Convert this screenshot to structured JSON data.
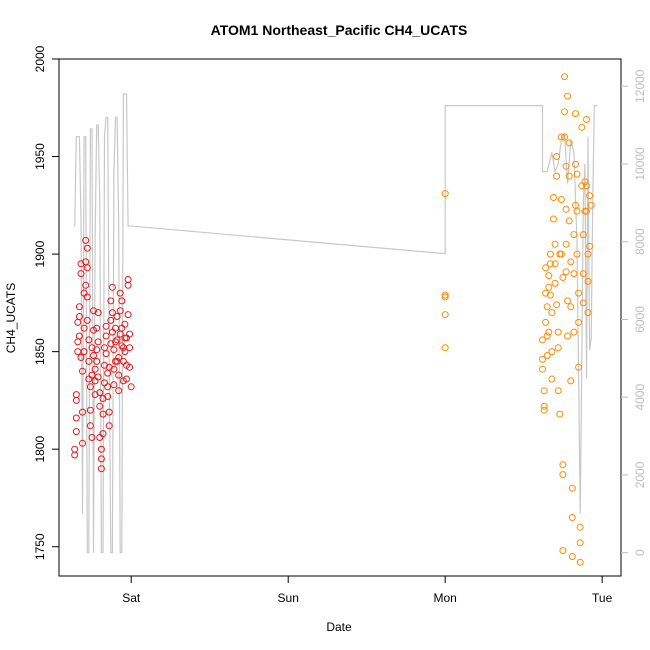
{
  "chart_data": {
    "type": "scatter",
    "title": "ATOM1 Northeast_Pacific CH4_UCATS",
    "xlabel": "Date",
    "ylabel": "CH4_UCATS",
    "x_ticks": [
      "Sat",
      "Sun",
      "Mon",
      "Tue"
    ],
    "x_range_days": [
      -0.46,
      3.12
    ],
    "ylim": [
      1735,
      2000
    ],
    "y_ticks": [
      1750,
      1800,
      1850,
      1900,
      1950,
      2000
    ],
    "y2lim": [
      -600,
      12700
    ],
    "y2_ticks": [
      0,
      2000,
      4000,
      6000,
      8000,
      10000,
      12000
    ],
    "grid": false,
    "legend": "none",
    "series": [
      {
        "color": "#e31a1c",
        "points": [
          [
            -0.36,
            1797
          ],
          [
            -0.36,
            1800
          ],
          [
            -0.35,
            1809
          ],
          [
            -0.35,
            1816
          ],
          [
            -0.35,
            1825
          ],
          [
            -0.35,
            1828
          ],
          [
            -0.34,
            1850
          ],
          [
            -0.34,
            1855
          ],
          [
            -0.34,
            1865
          ],
          [
            -0.33,
            1858
          ],
          [
            -0.33,
            1868
          ],
          [
            -0.33,
            1873
          ],
          [
            -0.32,
            1895
          ],
          [
            -0.32,
            1890
          ],
          [
            -0.32,
            1847
          ],
          [
            -0.31,
            1840
          ],
          [
            -0.31,
            1819
          ],
          [
            -0.31,
            1803
          ],
          [
            -0.3,
            1850
          ],
          [
            -0.3,
            1862
          ],
          [
            -0.3,
            1880
          ],
          [
            -0.29,
            1884
          ],
          [
            -0.29,
            1896
          ],
          [
            -0.29,
            1907
          ],
          [
            -0.28,
            1903
          ],
          [
            -0.28,
            1893
          ],
          [
            -0.28,
            1878
          ],
          [
            -0.28,
            1866
          ],
          [
            -0.27,
            1856
          ],
          [
            -0.27,
            1845
          ],
          [
            -0.27,
            1836
          ],
          [
            -0.26,
            1832
          ],
          [
            -0.26,
            1820
          ],
          [
            -0.26,
            1812
          ],
          [
            -0.25,
            1806
          ],
          [
            -0.25,
            1838
          ],
          [
            -0.25,
            1852
          ],
          [
            -0.24,
            1861
          ],
          [
            -0.24,
            1871
          ],
          [
            -0.24,
            1848
          ],
          [
            -0.23,
            1841
          ],
          [
            -0.23,
            1828
          ],
          [
            -0.23,
            1835
          ],
          [
            -0.22,
            1845
          ],
          [
            -0.22,
            1851
          ],
          [
            -0.22,
            1862
          ],
          [
            -0.21,
            1870
          ],
          [
            -0.21,
            1855
          ],
          [
            -0.21,
            1837
          ],
          [
            -0.2,
            1829
          ],
          [
            -0.2,
            1822
          ],
          [
            -0.2,
            1806
          ],
          [
            -0.19,
            1800
          ],
          [
            -0.19,
            1790
          ],
          [
            -0.19,
            1795
          ],
          [
            -0.18,
            1808
          ],
          [
            -0.18,
            1818
          ],
          [
            -0.18,
            1826
          ],
          [
            -0.17,
            1834
          ],
          [
            -0.17,
            1843
          ],
          [
            -0.17,
            1852
          ],
          [
            -0.16,
            1858
          ],
          [
            -0.16,
            1863
          ],
          [
            -0.16,
            1849
          ],
          [
            -0.15,
            1839
          ],
          [
            -0.15,
            1832
          ],
          [
            -0.15,
            1827
          ],
          [
            -0.14,
            1819
          ],
          [
            -0.14,
            1812
          ],
          [
            -0.14,
            1842
          ],
          [
            -0.13,
            1854
          ],
          [
            -0.13,
            1866
          ],
          [
            -0.13,
            1876
          ],
          [
            -0.12,
            1883
          ],
          [
            -0.12,
            1870
          ],
          [
            -0.12,
            1860
          ],
          [
            -0.11,
            1851
          ],
          [
            -0.11,
            1841
          ],
          [
            -0.11,
            1833
          ],
          [
            -0.1,
            1845
          ],
          [
            -0.1,
            1855
          ],
          [
            -0.1,
            1862
          ],
          [
            -0.09,
            1868
          ],
          [
            -0.09,
            1856
          ],
          [
            -0.09,
            1845
          ],
          [
            -0.08,
            1838
          ],
          [
            -0.08,
            1830
          ],
          [
            -0.08,
            1847
          ],
          [
            -0.07,
            1859
          ],
          [
            -0.07,
            1871
          ],
          [
            -0.07,
            1880
          ],
          [
            -0.06,
            1876
          ],
          [
            -0.06,
            1862
          ],
          [
            -0.06,
            1853
          ],
          [
            -0.05,
            1845
          ],
          [
            -0.05,
            1835
          ],
          [
            -0.05,
            1852
          ],
          [
            -0.04,
            1857
          ],
          [
            -0.04,
            1864
          ],
          [
            -0.04,
            1850
          ],
          [
            -0.03,
            1843
          ],
          [
            -0.03,
            1836
          ],
          [
            -0.03,
            1857
          ],
          [
            -0.02,
            1884
          ],
          [
            -0.02,
            1887
          ],
          [
            -0.02,
            1869
          ],
          [
            -0.01,
            1859
          ],
          [
            -0.01,
            1852
          ],
          [
            -0.01,
            1842
          ],
          [
            0,
            1832
          ]
        ]
      },
      {
        "color": "#ff8c00",
        "points": [
          [
            2.0,
            1931
          ],
          [
            2.0,
            1879
          ],
          [
            2.0,
            1878
          ],
          [
            2.0,
            1869
          ],
          [
            2.0,
            1852
          ],
          [
            2.62,
            1856
          ],
          [
            2.62,
            1846
          ],
          [
            2.62,
            1841
          ],
          [
            2.63,
            1830
          ],
          [
            2.63,
            1822
          ],
          [
            2.63,
            1820
          ],
          [
            2.64,
            1893
          ],
          [
            2.64,
            1880
          ],
          [
            2.64,
            1865
          ],
          [
            2.65,
            1858
          ],
          [
            2.65,
            1848
          ],
          [
            2.65,
            1873
          ],
          [
            2.66,
            1889
          ],
          [
            2.66,
            1883
          ],
          [
            2.66,
            1860
          ],
          [
            2.67,
            1879
          ],
          [
            2.67,
            1900
          ],
          [
            2.67,
            1895
          ],
          [
            2.68,
            1870
          ],
          [
            2.68,
            1850
          ],
          [
            2.68,
            1836
          ],
          [
            2.69,
            1929
          ],
          [
            2.69,
            1918
          ],
          [
            2.7,
            1905
          ],
          [
            2.7,
            1895
          ],
          [
            2.7,
            1885
          ],
          [
            2.71,
            1950
          ],
          [
            2.71,
            1940
          ],
          [
            2.71,
            1874
          ],
          [
            2.72,
            1860
          ],
          [
            2.72,
            1852
          ],
          [
            2.72,
            1830
          ],
          [
            2.73,
            1818
          ],
          [
            2.73,
            1900
          ],
          [
            2.74,
            1960
          ],
          [
            2.74,
            1928
          ],
          [
            2.74,
            1900
          ],
          [
            2.75,
            1888
          ],
          [
            2.75,
            1792
          ],
          [
            2.75,
            1787
          ],
          [
            2.75,
            1748
          ],
          [
            2.76,
            1991
          ],
          [
            2.76,
            1973
          ],
          [
            2.76,
            1960
          ],
          [
            2.77,
            1945
          ],
          [
            2.77,
            1923
          ],
          [
            2.77,
            1905
          ],
          [
            2.77,
            1891
          ],
          [
            2.78,
            1876
          ],
          [
            2.78,
            1858
          ],
          [
            2.78,
            1981
          ],
          [
            2.79,
            1957
          ],
          [
            2.79,
            1940
          ],
          [
            2.79,
            1917
          ],
          [
            2.8,
            1896
          ],
          [
            2.8,
            1873
          ],
          [
            2.8,
            1835
          ],
          [
            2.81,
            1780
          ],
          [
            2.81,
            1765
          ],
          [
            2.81,
            1745
          ],
          [
            2.82,
            1860
          ],
          [
            2.82,
            1890
          ],
          [
            2.82,
            1910
          ],
          [
            2.83,
            1925
          ],
          [
            2.83,
            1946
          ],
          [
            2.83,
            1972
          ],
          [
            2.84,
            1941
          ],
          [
            2.84,
            1922
          ],
          [
            2.84,
            1900
          ],
          [
            2.85,
            1880
          ],
          [
            2.85,
            1865
          ],
          [
            2.85,
            1842
          ],
          [
            2.86,
            1760
          ],
          [
            2.86,
            1752
          ],
          [
            2.86,
            1742
          ],
          [
            2.87,
            1965
          ],
          [
            2.87,
            1935
          ],
          [
            2.88,
            1910
          ],
          [
            2.88,
            1890
          ],
          [
            2.88,
            1875
          ],
          [
            2.89,
            1922
          ],
          [
            2.89,
            1937
          ],
          [
            2.9,
            1969
          ],
          [
            2.9,
            1935
          ],
          [
            2.9,
            1922
          ],
          [
            2.91,
            1900
          ],
          [
            2.91,
            1886
          ],
          [
            2.91,
            1870
          ],
          [
            2.92,
            1930
          ],
          [
            2.92,
            1904
          ],
          [
            2.93,
            1925
          ]
        ]
      }
    ],
    "line_series": [
      {
        "color": "#c8c8c8",
        "axis": "right",
        "points": [
          [
            -0.36,
            8400
          ],
          [
            -0.35,
            10700
          ],
          [
            -0.33,
            10700
          ],
          [
            -0.32,
            8600
          ],
          [
            -0.31,
            1000
          ],
          [
            -0.3,
            10700
          ],
          [
            -0.29,
            10700
          ],
          [
            -0.28,
            0
          ],
          [
            -0.27,
            0
          ],
          [
            -0.26,
            10900
          ],
          [
            -0.25,
            10900
          ],
          [
            -0.24,
            0
          ],
          [
            -0.23,
            8000
          ],
          [
            -0.22,
            11000
          ],
          [
            -0.21,
            11000
          ],
          [
            -0.2,
            9000
          ],
          [
            -0.19,
            0
          ],
          [
            -0.18,
            0
          ],
          [
            -0.17,
            10700
          ],
          [
            -0.16,
            11200
          ],
          [
            -0.15,
            11200
          ],
          [
            -0.14,
            5000
          ],
          [
            -0.13,
            0
          ],
          [
            -0.12,
            0
          ],
          [
            -0.11,
            9800
          ],
          [
            -0.1,
            11200
          ],
          [
            -0.09,
            11200
          ],
          [
            -0.08,
            8400
          ],
          [
            -0.07,
            0
          ],
          [
            -0.06,
            0
          ],
          [
            -0.05,
            11800
          ],
          [
            -0.04,
            11800
          ],
          [
            -0.03,
            11800
          ],
          [
            -0.02,
            8400
          ],
          [
            -0.01,
            8400
          ],
          [
            0.01,
            8400
          ],
          [
            1.98,
            7700
          ],
          [
            2.0,
            7700
          ],
          [
            2.0,
            11500
          ],
          [
            2.15,
            11500
          ],
          [
            2.5,
            11500
          ],
          [
            2.62,
            11500
          ],
          [
            2.62,
            9800
          ],
          [
            2.65,
            9800
          ],
          [
            2.68,
            10300
          ],
          [
            2.7,
            9800
          ],
          [
            2.72,
            10000
          ],
          [
            2.74,
            10600
          ],
          [
            2.76,
            10800
          ],
          [
            2.78,
            9500
          ],
          [
            2.8,
            10600
          ],
          [
            2.82,
            10300
          ],
          [
            2.84,
            8000
          ],
          [
            2.86,
            1000
          ],
          [
            2.87,
            5000
          ],
          [
            2.88,
            9000
          ],
          [
            2.89,
            10000
          ],
          [
            2.9,
            4500
          ],
          [
            2.91,
            10700
          ],
          [
            2.92,
            5200
          ],
          [
            2.93,
            5500
          ],
          [
            2.94,
            9000
          ],
          [
            2.95,
            11500
          ],
          [
            2.97,
            11500
          ]
        ]
      }
    ]
  }
}
